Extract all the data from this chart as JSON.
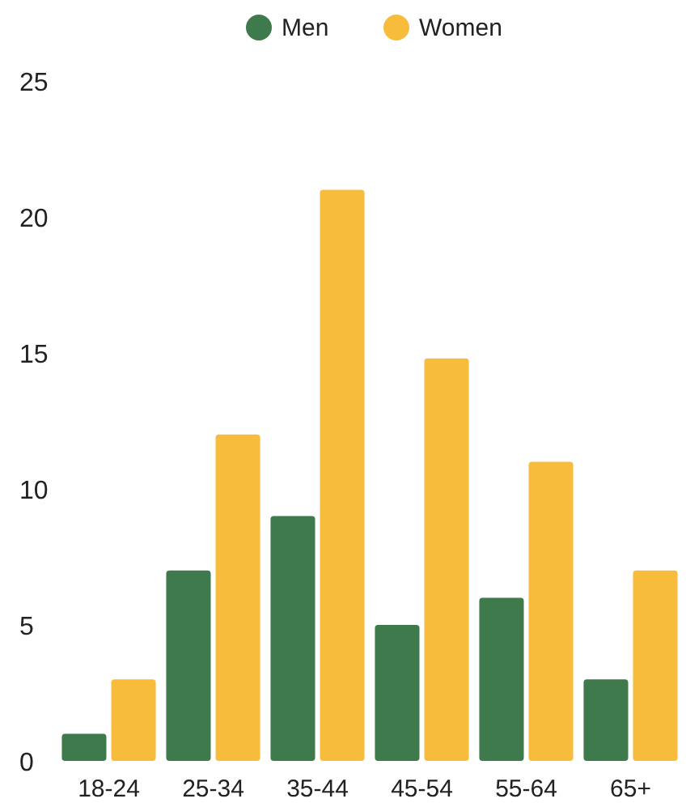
{
  "chart_data": {
    "type": "bar",
    "categories": [
      "18-24",
      "25-34",
      "35-44",
      "45-54",
      "55-64",
      "65+"
    ],
    "series": [
      {
        "name": "Men",
        "color": "#3f7a4c",
        "values": [
          1,
          7,
          9,
          5,
          6,
          3
        ]
      },
      {
        "name": "Women",
        "color": "#f8bc3c",
        "values": [
          3,
          12,
          21,
          14.8,
          11,
          7
        ]
      }
    ],
    "ylim": [
      0,
      25
    ],
    "yticks": [
      0,
      5,
      10,
      15,
      20,
      25
    ],
    "grid": false,
    "legend": "top"
  }
}
